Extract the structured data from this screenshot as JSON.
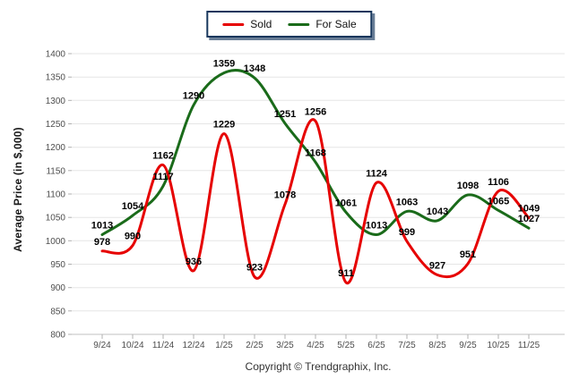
{
  "chart_data": {
    "type": "line",
    "categories": [
      "9/24",
      "10/24",
      "11/24",
      "12/24",
      "1/25",
      "2/25",
      "3/25",
      "4/25",
      "5/25",
      "6/25",
      "7/25",
      "8/25",
      "9/25",
      "10/25",
      "11/25"
    ],
    "series": [
      {
        "name": "Sold",
        "color": "#e60000",
        "values": [
          978,
          990,
          1162,
          936,
          1229,
          923,
          1078,
          1256,
          911,
          1124,
          999,
          927,
          951,
          1106,
          1049
        ]
      },
      {
        "name": "For Sale",
        "color": "#1a6b1a",
        "values": [
          1013,
          1054,
          1117,
          1290,
          1359,
          1348,
          1251,
          1168,
          1061,
          1013,
          1063,
          1043,
          1098,
          1065,
          1027
        ]
      }
    ],
    "title": "",
    "xlabel": "",
    "ylabel": "Average Price (in $,000)",
    "ylim": [
      800,
      1400
    ],
    "ytick_step": 50,
    "grid": "horizontal",
    "legend_position": "top-center",
    "data_labels": true,
    "smooth": true
  },
  "footer": {
    "copyright": "Copyright © Trendgraphix, Inc."
  },
  "colors": {
    "grid": "#e5e5e5",
    "axis": "#c0c0c0",
    "tick": "#b0b0b0",
    "tick_label": "#4d4d4d",
    "data_label": "#000000",
    "legend_border": "#17375d",
    "background": "#ffffff"
  }
}
